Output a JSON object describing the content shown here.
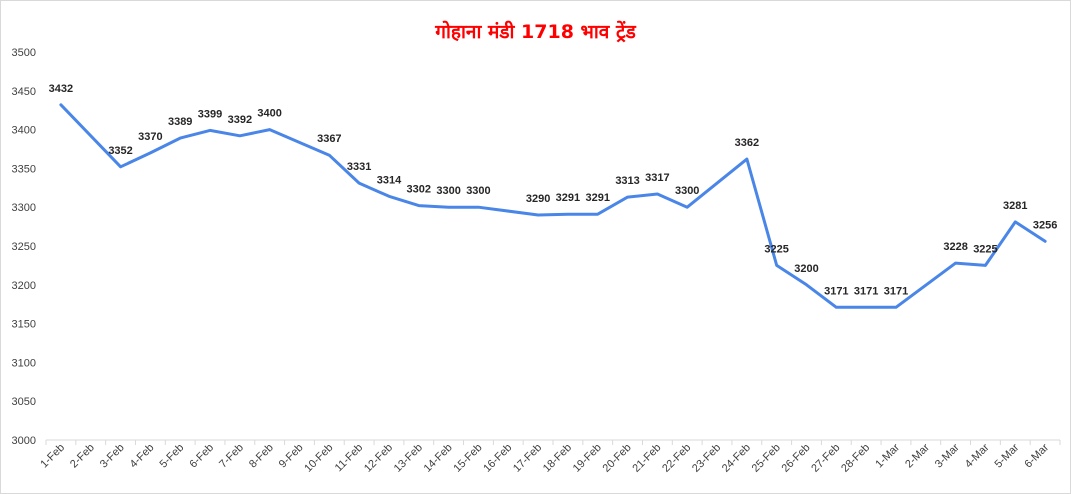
{
  "chart_data": {
    "type": "line",
    "title": "गोहाना मंडी 1718 भाव ट्रेंड",
    "categories": [
      "1-Feb",
      "2-Feb",
      "3-Feb",
      "4-Feb",
      "5-Feb",
      "6-Feb",
      "7-Feb",
      "8-Feb",
      "9-Feb",
      "10-Feb",
      "11-Feb",
      "12-Feb",
      "13-Feb",
      "14-Feb",
      "15-Feb",
      "16-Feb",
      "17-Feb",
      "18-Feb",
      "19-Feb",
      "20-Feb",
      "21-Feb",
      "22-Feb",
      "23-Feb",
      "24-Feb",
      "25-Feb",
      "26-Feb",
      "27-Feb",
      "28-Feb",
      "1-Mar",
      "2-Mar",
      "3-Mar",
      "4-Mar",
      "5-Mar",
      "6-Mar"
    ],
    "values": [
      3432,
      null,
      3352,
      3370,
      3389,
      3399,
      3392,
      3400,
      null,
      3367,
      3331,
      3314,
      3302,
      3300,
      3300,
      null,
      3290,
      3291,
      3291,
      3313,
      3317,
      3300,
      null,
      3362,
      3225,
      3200,
      3171,
      3171,
      3171,
      null,
      3228,
      3225,
      3281,
      3256
    ],
    "ylim": [
      3000,
      3500
    ],
    "yticks": [
      3000,
      3050,
      3100,
      3150,
      3200,
      3250,
      3300,
      3350,
      3400,
      3450,
      3500
    ],
    "grid": false,
    "line_color": "#4a86e8",
    "title_color": "#ff0000"
  }
}
